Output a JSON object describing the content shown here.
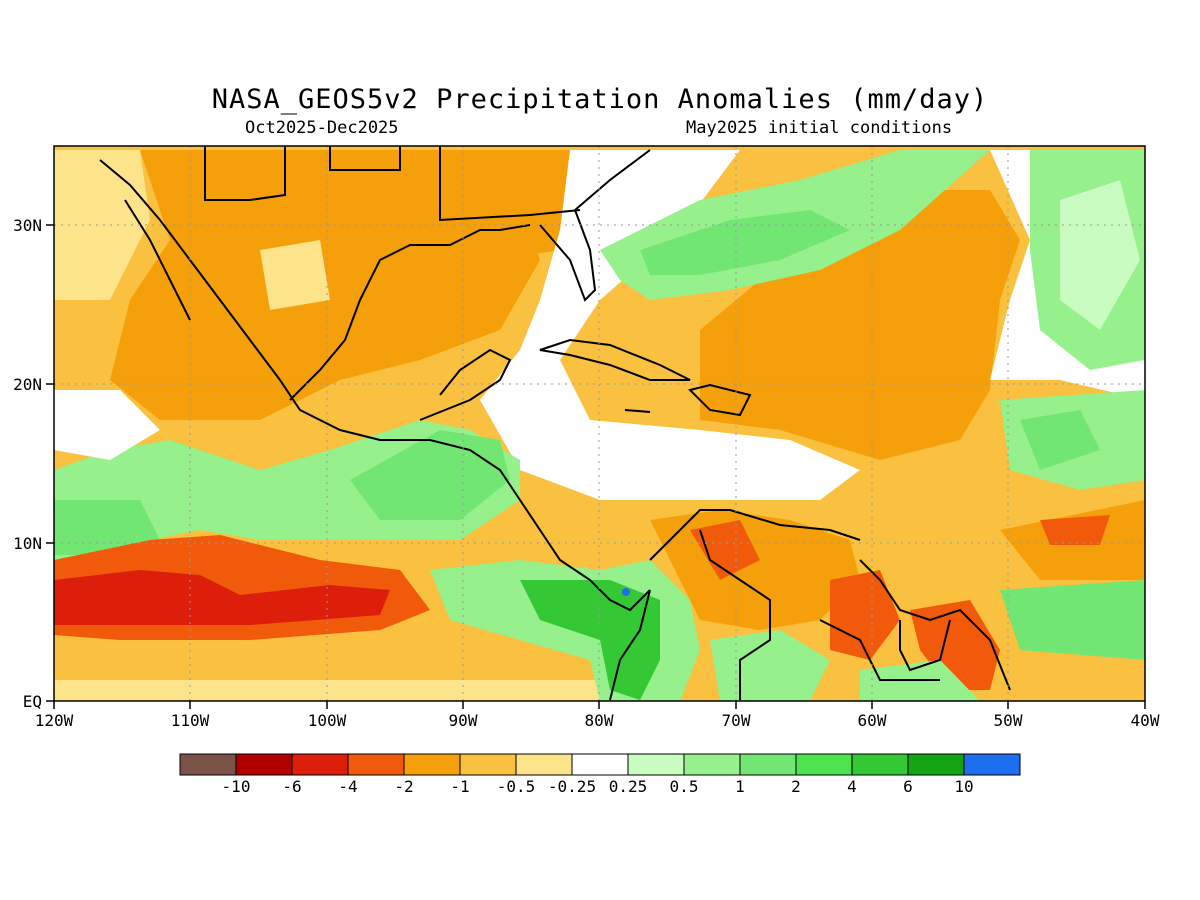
{
  "title": "NASA_GEOS5v2 Precipitation Anomalies (mm/day)",
  "subtitle_left": "Oct2025-Dec2025",
  "subtitle_right": "May2025 initial conditions",
  "x_ticks": [
    "120W",
    "110W",
    "100W",
    "90W",
    "80W",
    "70W",
    "60W",
    "50W",
    "40W"
  ],
  "y_ticks": [
    "30N",
    "20N",
    "10N",
    "EQ"
  ],
  "colorbar": {
    "colors": [
      "#7b5247",
      "#b00000",
      "#dc1e0a",
      "#f05a0a",
      "#f5a00a",
      "#fac040",
      "#fde38a",
      "#ffffff",
      "#c8fcc0",
      "#96f08c",
      "#72e672",
      "#4ee24e",
      "#34c834",
      "#12a412",
      "#1e6ef0"
    ],
    "labels": [
      "-10",
      "-6",
      "-4",
      "-2",
      "-1",
      "-0.5",
      "-0.25",
      "0.25",
      "0.5",
      "1",
      "2",
      "4",
      "6",
      "10"
    ]
  },
  "palette": {
    "light_orange": "#fde38a",
    "tan": "#fac040",
    "orange": "#f5a00a",
    "dark_orange": "#f05a0a",
    "red": "#dc1e0a",
    "light_green": "#c8fcc0",
    "green": "#96f08c",
    "mid_green": "#72e672",
    "strong_green": "#34c834",
    "blue": "#1e6ef0"
  }
}
